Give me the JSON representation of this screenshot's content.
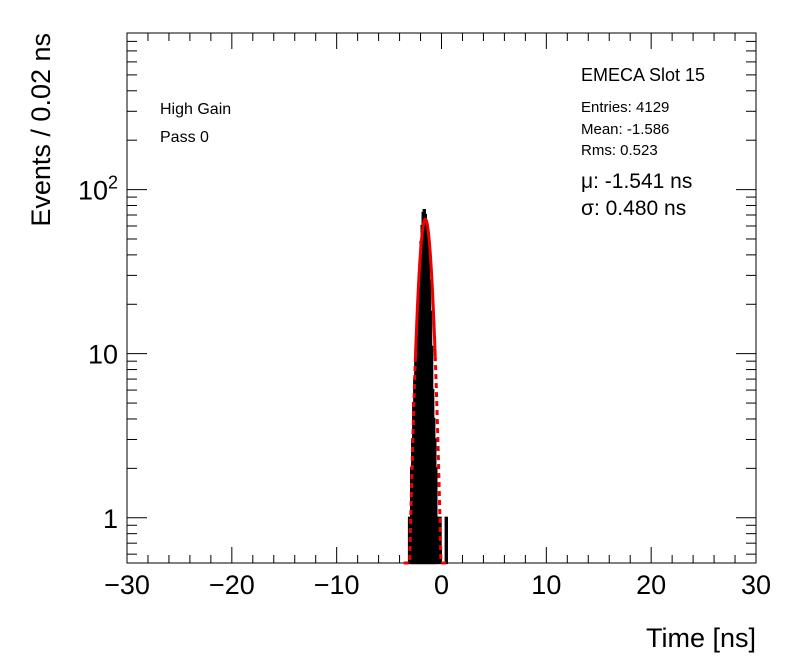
{
  "chart_data": {
    "type": "histogram",
    "title": "EMECA Slot 15",
    "xlabel": "Time [ns]",
    "ylabel": "Events / 0.02 ns",
    "xlim": [
      -30,
      30
    ],
    "ylim": [
      0.53,
      900
    ],
    "yscale": "log",
    "x_ticks": [
      -30,
      -20,
      -10,
      0,
      10,
      20,
      30
    ],
    "x_tick_labels": [
      "−30",
      "−20",
      "−10",
      "0",
      "10",
      "20",
      "30"
    ],
    "y_ticks": [
      1,
      10,
      100
    ],
    "y_tick_labels": [
      "1",
      "10",
      "10²"
    ],
    "annotations": [
      "High Gain",
      "Pass 0"
    ],
    "stats": {
      "entries": "Entries: 4129",
      "mean": "Mean: -1.586",
      "rms": "Rms: 0.523",
      "mu": "μ: -1.541 ns",
      "sigma": "σ: 0.480 ns"
    },
    "histogram": {
      "name": "data",
      "color": "#000000",
      "bins": [
        {
          "x": -3.05,
          "y": 1
        },
        {
          "x": -2.85,
          "y": 2
        },
        {
          "x": -2.75,
          "y": 3
        },
        {
          "x": -2.65,
          "y": 5
        },
        {
          "x": -2.55,
          "y": 7
        },
        {
          "x": -2.45,
          "y": 9
        },
        {
          "x": -2.35,
          "y": 14
        },
        {
          "x": -2.25,
          "y": 18
        },
        {
          "x": -2.15,
          "y": 26
        },
        {
          "x": -2.05,
          "y": 35
        },
        {
          "x": -1.95,
          "y": 48
        },
        {
          "x": -1.85,
          "y": 60
        },
        {
          "x": -1.75,
          "y": 72
        },
        {
          "x": -1.65,
          "y": 75
        },
        {
          "x": -1.55,
          "y": 70
        },
        {
          "x": -1.45,
          "y": 62
        },
        {
          "x": -1.35,
          "y": 52
        },
        {
          "x": -1.25,
          "y": 40
        },
        {
          "x": -1.15,
          "y": 28
        },
        {
          "x": -1.05,
          "y": 18
        },
        {
          "x": -0.95,
          "y": 11
        },
        {
          "x": -0.85,
          "y": 6
        },
        {
          "x": -0.75,
          "y": 4
        },
        {
          "x": -0.65,
          "y": 3
        },
        {
          "x": -0.55,
          "y": 2
        },
        {
          "x": -0.45,
          "y": 1
        },
        {
          "x": -0.15,
          "y": 1
        },
        {
          "x": 0.45,
          "y": 1
        }
      ]
    },
    "fit": {
      "name": "gaussian fit",
      "color": "#ee0000",
      "mu": -1.541,
      "sigma": 0.48,
      "amplitude": 66,
      "solid_range": [
        -2.5,
        -0.6
      ]
    }
  }
}
